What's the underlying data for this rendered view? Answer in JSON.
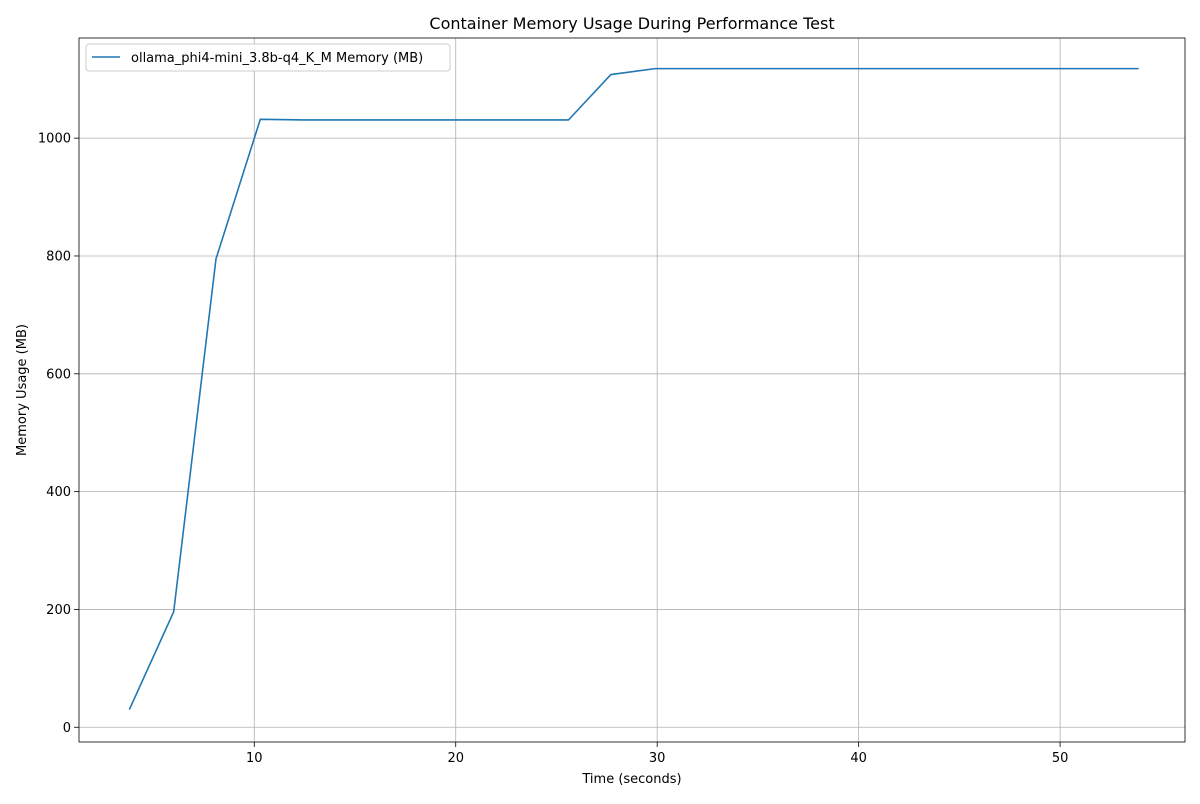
{
  "chart_data": {
    "type": "line",
    "title": "Container Memory Usage During Performance Test",
    "xlabel": "Time (seconds)",
    "ylabel": "Memory Usage (MB)",
    "xlim": [
      1.3,
      56.2
    ],
    "ylim": [
      -25,
      1170
    ],
    "x_ticks": [
      10,
      20,
      30,
      40,
      50
    ],
    "y_ticks": [
      0,
      200,
      400,
      600,
      800,
      1000
    ],
    "grid": true,
    "legend_position": "top-left",
    "series": [
      {
        "name": "ollama_phi4-mini_3.8b-q4_K_M Memory (MB)",
        "color": "#1f77b4",
        "x": [
          3.8,
          6.0,
          8.1,
          10.3,
          12.5,
          14.7,
          16.9,
          19.1,
          21.2,
          23.4,
          25.6,
          27.7,
          29.9,
          32.1,
          34.3,
          36.4,
          38.6,
          40.8,
          43.0,
          45.1,
          47.3,
          49.5,
          51.7,
          53.9
        ],
        "y": [
          30,
          196,
          795,
          1032,
          1031,
          1031,
          1031,
          1031,
          1031,
          1031,
          1031,
          1108,
          1118,
          1118,
          1118,
          1118,
          1118,
          1118,
          1118,
          1118,
          1118,
          1118,
          1118,
          1118
        ]
      }
    ]
  }
}
